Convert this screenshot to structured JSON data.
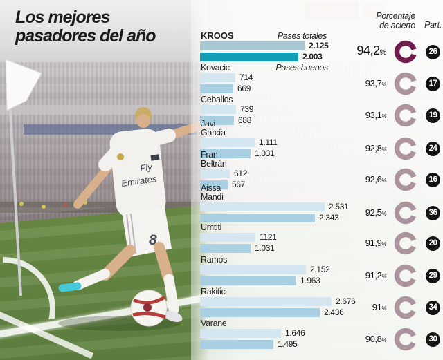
{
  "title": {
    "line1": "Los mejores",
    "line2": "pasadores del año"
  },
  "legend": {
    "total_label": "Pases totales",
    "good_label": "Pases buenos"
  },
  "headers": {
    "accuracy_line1": "Porcentaje",
    "accuracy_line2": "de acierto",
    "participation": "Part."
  },
  "colors": {
    "bar_total_highlight": "#a7c8d2",
    "bar_good_highlight": "#129fb6",
    "bar_total": "#d4e6ef",
    "bar_good": "#a8cfe2",
    "ring_highlight": "#6e1d4d",
    "ring_muted": "#ab949e",
    "badge_bg": "#141212",
    "text": "#1b1b1b"
  },
  "photo": {
    "jersey_line1": "Fly",
    "jersey_line2": "Emirates",
    "shorts_number": "8"
  },
  "chart_data": {
    "type": "bar",
    "orientation": "horizontal",
    "title": "Los mejores pasadores del año",
    "series_labels": [
      "Pases totales",
      "Pases buenos"
    ],
    "value_max_for_scale": 2676,
    "legend_position": "top-right of first rows",
    "grid": false,
    "players": [
      {
        "name": "KROOS",
        "name_lines": [
          "KROOS"
        ],
        "total_display": "2.125",
        "total": 2125,
        "good_display": "2.003",
        "good": 2003,
        "accuracy_display": "94,2",
        "accuracy": 94.2,
        "participations": "26",
        "highlight": true
      },
      {
        "name": "Kovacic",
        "name_lines": [
          "Kovacic"
        ],
        "total_display": "714",
        "total": 714,
        "good_display": "669",
        "good": 669,
        "accuracy_display": "93,7",
        "accuracy": 93.7,
        "participations": "17",
        "highlight": false
      },
      {
        "name": "Ceballos",
        "name_lines": [
          "Ceballos"
        ],
        "total_display": "739",
        "total": 739,
        "good_display": "688",
        "good": 688,
        "accuracy_display": "93,1",
        "accuracy": 93.1,
        "participations": "19",
        "highlight": false
      },
      {
        "name": "Javi García",
        "name_lines": [
          "Javi",
          "García"
        ],
        "total_display": "1.111",
        "total": 1111,
        "good_display": "1.031",
        "good": 1031,
        "accuracy_display": "92,8",
        "accuracy": 92.8,
        "participations": "24",
        "highlight": false
      },
      {
        "name": "Fran Beltrán",
        "name_lines": [
          "Fran",
          "Beltrán"
        ],
        "total_display": "612",
        "total": 612,
        "good_display": "567",
        "good": 567,
        "accuracy_display": "92,6",
        "accuracy": 92.6,
        "participations": "16",
        "highlight": false
      },
      {
        "name": "Aissa Mandi",
        "name_lines": [
          "Aissa",
          "Mandi"
        ],
        "total_display": "2.531",
        "total": 2531,
        "good_display": "2.343",
        "good": 2343,
        "accuracy_display": "92,5",
        "accuracy": 92.5,
        "participations": "36",
        "highlight": false
      },
      {
        "name": "Umtiti",
        "name_lines": [
          "Umtiti"
        ],
        "total_display": "1121",
        "total": 1121,
        "good_display": "1.031",
        "good": 1031,
        "accuracy_display": "91,9",
        "accuracy": 91.9,
        "participations": "20",
        "highlight": false
      },
      {
        "name": "Ramos",
        "name_lines": [
          "Ramos"
        ],
        "total_display": "2.152",
        "total": 2152,
        "good_display": "1.963",
        "good": 1963,
        "accuracy_display": "91,2",
        "accuracy": 91.2,
        "participations": "29",
        "highlight": false
      },
      {
        "name": "Rakitic",
        "name_lines": [
          "Rakitic"
        ],
        "total_display": "2.676",
        "total": 2676,
        "good_display": "2.436",
        "good": 2436,
        "accuracy_display": "91",
        "accuracy": 91.0,
        "participations": "34",
        "highlight": false
      },
      {
        "name": "Varane",
        "name_lines": [
          "Varane"
        ],
        "total_display": "1.646",
        "total": 1646,
        "good_display": "1.495",
        "good": 1495,
        "accuracy_display": "90,8",
        "accuracy": 90.8,
        "participations": "30",
        "highlight": false
      }
    ]
  }
}
